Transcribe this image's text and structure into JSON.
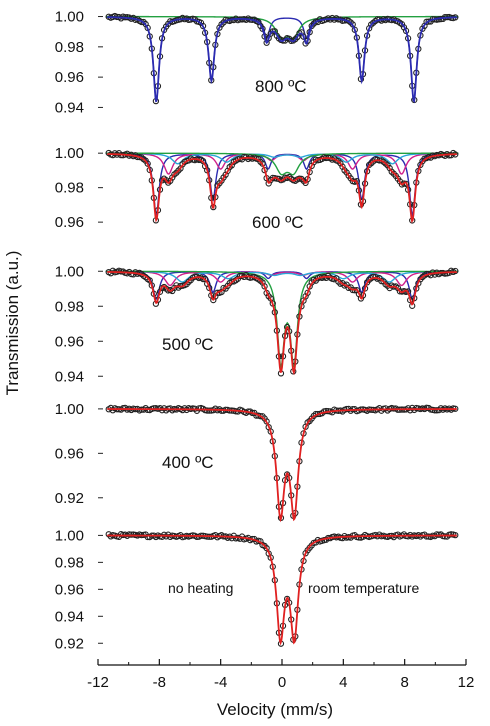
{
  "chart_data": {
    "type": "line",
    "xlabel": "Velocity (mm/s)",
    "ylabel": "Transmission (a.u.)",
    "xlim": [
      -12,
      12
    ],
    "xticks": [
      "-12",
      "-8",
      "-4",
      "0",
      "4",
      "8",
      "12"
    ],
    "colors": {
      "data_points": "#222222",
      "blue": "#2b2bb0",
      "green": "#22a040",
      "red": "#e02020",
      "magenta": "#d0208a",
      "cyan": "#29a6d8",
      "orange": "#f08020"
    },
    "panels": [
      {
        "id": "800",
        "label": "800 ºC",
        "ylim": [
          0.935,
          1.003
        ],
        "yticks": [
          "1.00",
          "0.98",
          "0.96",
          "0.94"
        ],
        "sextets": [
          {
            "color": "blue",
            "positions": [
              -8.2,
              -4.6,
              -1.0,
              1.6,
              5.2,
              8.6
            ],
            "depths": [
              0.056,
              0.042,
              0.014,
              0.014,
              0.042,
              0.056
            ],
            "width": 0.45
          }
        ],
        "doublets": [
          {
            "color": "green",
            "center": 0.35,
            "split": 0.8,
            "depth": 0.012,
            "width": 0.9
          }
        ],
        "total_color": "blue"
      },
      {
        "id": "600",
        "label": "600 ºC",
        "ylim": [
          0.945,
          1.003
        ],
        "yticks": [
          "1.00",
          "0.98",
          "0.96"
        ],
        "sextets": [
          {
            "color": "blue",
            "positions": [
              -8.2,
              -4.5,
              -0.9,
              1.6,
              5.2,
              8.5
            ],
            "depths": [
              0.036,
              0.027,
              0.009,
              0.009,
              0.027,
              0.036
            ],
            "width": 0.45
          },
          {
            "color": "magenta",
            "positions": [
              -7.4,
              -4.0,
              -0.7,
              1.4,
              4.6,
              7.8
            ],
            "depths": [
              0.012,
              0.009,
              0.004,
              0.004,
              0.009,
              0.012
            ],
            "width": 0.7
          },
          {
            "color": "cyan",
            "positions": [
              -6.8,
              -3.6,
              -0.5,
              1.2,
              4.2,
              7.2
            ],
            "depths": [
              0.006,
              0.005,
              0.002,
              0.002,
              0.005,
              0.006
            ],
            "width": 0.9
          }
        ],
        "doublets": [
          {
            "color": "green",
            "center": 0.35,
            "split": 0.8,
            "depth": 0.01,
            "width": 0.9
          }
        ],
        "total_color": "red"
      },
      {
        "id": "500",
        "label": "500 ºC",
        "ylim": [
          0.935,
          1.003
        ],
        "yticks": [
          "1.00",
          "0.98",
          "0.96",
          "0.94"
        ],
        "sextets": [
          {
            "color": "blue",
            "positions": [
              -8.2,
              -4.5,
              -0.9,
              1.6,
              5.2,
              8.5
            ],
            "depths": [
              0.016,
              0.012,
              0.004,
              0.004,
              0.012,
              0.016
            ],
            "width": 0.5
          },
          {
            "color": "magenta",
            "positions": [
              -7.3,
              -4.0,
              -0.7,
              1.4,
              4.6,
              7.8
            ],
            "depths": [
              0.008,
              0.006,
              0.002,
              0.002,
              0.006,
              0.008
            ],
            "width": 0.8
          },
          {
            "color": "cyan",
            "positions": [
              -6.5,
              -3.5,
              -0.5,
              1.2,
              4.0,
              7.0
            ],
            "depths": [
              0.006,
              0.004,
              0.002,
              0.002,
              0.004,
              0.006
            ],
            "width": 1.0
          }
        ],
        "doublets": [
          {
            "color": "green",
            "center": 0.35,
            "split": 0.85,
            "depth": 0.05,
            "width": 0.55
          }
        ],
        "total_color": "red"
      },
      {
        "id": "400",
        "label": "400 ºC",
        "ylim": [
          0.9,
          1.008
        ],
        "yticks": [
          "1.00",
          "0.96",
          "0.92"
        ],
        "sextets": [],
        "doublets": [
          {
            "color": "red",
            "center": 0.35,
            "split": 0.9,
            "depth": 0.09,
            "width": 0.62
          }
        ],
        "total_color": "red"
      },
      {
        "id": "rt",
        "label": "no heating",
        "label_right": "room temperature",
        "ylim": [
          0.915,
          1.004
        ],
        "yticks": [
          "1.00",
          "0.98",
          "0.96",
          "0.94",
          "0.92"
        ],
        "sextets": [],
        "doublets": [
          {
            "color": "red",
            "center": 0.35,
            "split": 0.9,
            "depth": 0.072,
            "width": 0.62
          }
        ],
        "total_color": "red"
      }
    ]
  }
}
